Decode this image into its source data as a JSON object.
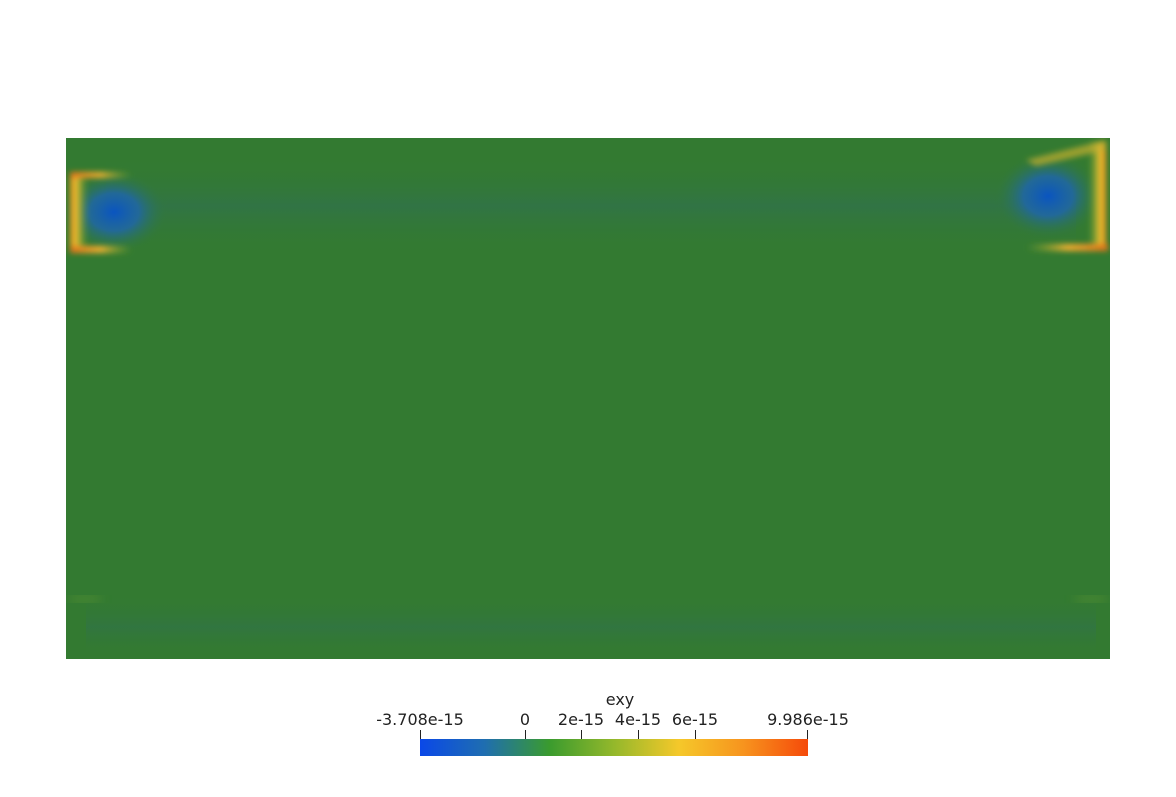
{
  "viewer": {
    "field_name": "exy"
  },
  "colorbar": {
    "title": "exy",
    "range": [
      -3.708e-15,
      9.986e-15
    ],
    "tick_labels": [
      "-3.708e-15",
      "0",
      "2e-15",
      "4e-15",
      "6e-15",
      "9.986e-15"
    ],
    "tick_values": [
      -3.708e-15,
      0,
      2e-15,
      4e-15,
      6e-15,
      9.986e-15
    ],
    "colormap": [
      "#0a48e8",
      "#1f6eb0",
      "#3a9b2e",
      "#94b82b",
      "#f5c82a",
      "#f7941e",
      "#f54a0a"
    ]
  },
  "colors": {
    "background": "#ffffff",
    "baseline_green": "#337a31",
    "low_blue": "#1c5eb0",
    "high_orange": "#f0a020"
  }
}
